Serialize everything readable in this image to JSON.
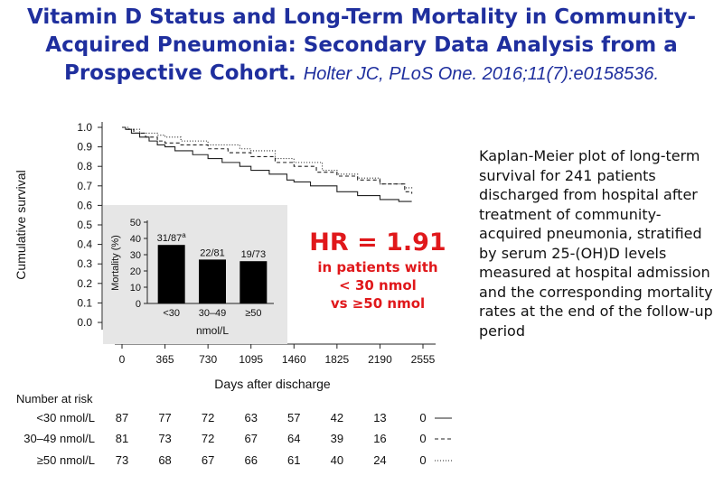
{
  "header": {
    "title_line1": "Vitamin D Status and Long-Term Mortality in Community-",
    "title_line2": "Acquired Pneumonia: Secondary Data Analysis from a",
    "title_line3": "Prospective Cohort.",
    "citation": "Holter JC, PLoS One. 2016;11(7):e0158536."
  },
  "description": "Kaplan-Meier plot of long-term survival for 241 patients discharged from hospital after treatment of community-acquired pneumonia, stratified by serum 25-(OH)D levels measured at hospital admission and the corresponding mortality rates at the end of the follow-up period",
  "hr": {
    "main": "HR = 1.91",
    "line1": "in patients with",
    "line2": "< 30 nmol",
    "line3": "vs ≥50 nmol"
  },
  "number_at_risk": {
    "title": "Number at risk",
    "rows": [
      {
        "label": "<30 nmol/L",
        "values": [
          "87",
          "77",
          "72",
          "63",
          "57",
          "42",
          "13",
          "0"
        ],
        "line_style": "solid"
      },
      {
        "label": "30–49 nmol/L",
        "values": [
          "81",
          "73",
          "72",
          "67",
          "64",
          "39",
          "16",
          "0"
        ],
        "line_style": "dashed"
      },
      {
        "label": "≥50 nmol/L",
        "values": [
          "73",
          "68",
          "67",
          "66",
          "61",
          "40",
          "24",
          "0"
        ],
        "line_style": "dotted"
      }
    ]
  },
  "chart_data": [
    {
      "type": "line",
      "xlabel": "Days after discharge",
      "ylabel": "Cumulative survival",
      "xticks": [
        "0",
        "365",
        "730",
        "1095",
        "1460",
        "1825",
        "2190",
        "2555"
      ],
      "yticks": [
        "0.0",
        "0.1",
        "0.2",
        "0.3",
        "0.4",
        "0.5",
        "0.6",
        "0.7",
        "0.8",
        "0.9",
        "1.0"
      ],
      "xlim": [
        0,
        2555
      ],
      "ylim": [
        0,
        1.0
      ],
      "series": [
        {
          "style": "solid",
          "x": [
            0,
            30,
            80,
            150,
            230,
            300,
            365,
            450,
            600,
            730,
            850,
            1000,
            1095,
            1250,
            1400,
            1460,
            1600,
            1825,
            2000,
            2190,
            2350,
            2460
          ],
          "y": [
            1.0,
            0.99,
            0.97,
            0.95,
            0.93,
            0.91,
            0.9,
            0.88,
            0.86,
            0.84,
            0.82,
            0.8,
            0.78,
            0.76,
            0.73,
            0.72,
            0.7,
            0.67,
            0.65,
            0.63,
            0.62,
            0.62
          ]
        },
        {
          "style": "dashed",
          "x": [
            0,
            40,
            100,
            200,
            300,
            365,
            500,
            730,
            900,
            1095,
            1300,
            1460,
            1650,
            1825,
            2000,
            2190,
            2400,
            2460
          ],
          "y": [
            1.0,
            0.99,
            0.97,
            0.95,
            0.93,
            0.92,
            0.91,
            0.89,
            0.87,
            0.85,
            0.82,
            0.8,
            0.77,
            0.75,
            0.73,
            0.71,
            0.67,
            0.66
          ]
        },
        {
          "style": "dotted",
          "x": [
            0,
            60,
            150,
            300,
            365,
            500,
            730,
            1000,
            1095,
            1300,
            1460,
            1700,
            1825,
            2000,
            2190,
            2400,
            2460
          ],
          "y": [
            1.0,
            0.99,
            0.97,
            0.96,
            0.95,
            0.93,
            0.91,
            0.89,
            0.88,
            0.84,
            0.82,
            0.78,
            0.76,
            0.74,
            0.71,
            0.69,
            0.68
          ]
        }
      ]
    },
    {
      "type": "bar",
      "ylabel": "Mortality (%)",
      "xlabel": "nmol/L",
      "categories": [
        "<30",
        "30–49",
        "≥50"
      ],
      "values": [
        36,
        27,
        26
      ],
      "bar_labels": [
        "31/87",
        "22/81",
        "19/73"
      ],
      "superscript": "a",
      "yticks": [
        "0",
        "10",
        "20",
        "30",
        "40",
        "50"
      ],
      "ylim": [
        0,
        50
      ]
    }
  ]
}
